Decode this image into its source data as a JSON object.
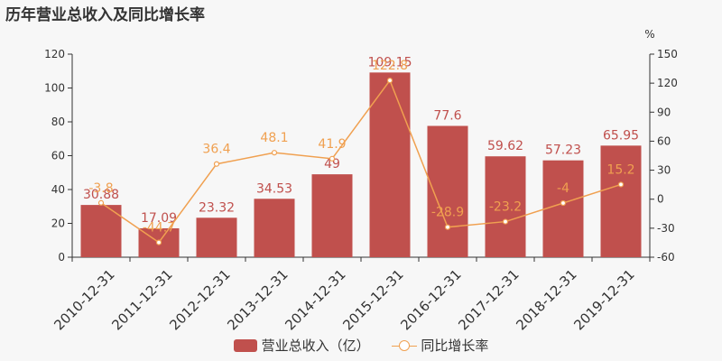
{
  "title": "历年营业总收入及同比增长率",
  "legend": {
    "bar_label": "营业总收入（亿）",
    "line_label": "同比增长率"
  },
  "chart_data": {
    "type": "bar",
    "categories": [
      "2010-12-31",
      "2011-12-31",
      "2012-12-31",
      "2013-12-31",
      "2014-12-31",
      "2015-12-31",
      "2016-12-31",
      "2017-12-31",
      "2018-12-31",
      "2019-12-31"
    ],
    "series": [
      {
        "name": "营业总收入（亿）",
        "type": "bar",
        "axis": "left",
        "values": [
          30.88,
          17.09,
          23.32,
          34.53,
          49,
          109.15,
          77.6,
          59.62,
          57.23,
          65.95
        ],
        "labels": [
          "30.88",
          "17.09",
          "23.32",
          "34.53",
          "49",
          "109.15",
          "77.6",
          "59.62",
          "57.23",
          "65.95"
        ],
        "color": "#c0504d"
      },
      {
        "name": "同比增长率",
        "type": "line",
        "axis": "right",
        "values": [
          -3.8,
          -44.7,
          36.4,
          48.1,
          41.9,
          122.8,
          -28.9,
          -23.2,
          -4,
          15.2
        ],
        "labels": [
          "-3.8",
          "-44.7",
          "36.4",
          "48.1",
          "41.9",
          "122.8",
          "-28.9",
          "-23.2",
          "-4",
          "15.2"
        ],
        "color": "#f0a050"
      }
    ],
    "ylim_left": [
      0,
      120
    ],
    "yticks_left": [
      0,
      20,
      40,
      60,
      80,
      100,
      120
    ],
    "ylim_right": [
      -60,
      150
    ],
    "yticks_right": [
      -60,
      -30,
      0,
      30,
      60,
      90,
      120,
      150
    ],
    "right_unit": "%",
    "grid": false,
    "legend_position": "bottom"
  }
}
